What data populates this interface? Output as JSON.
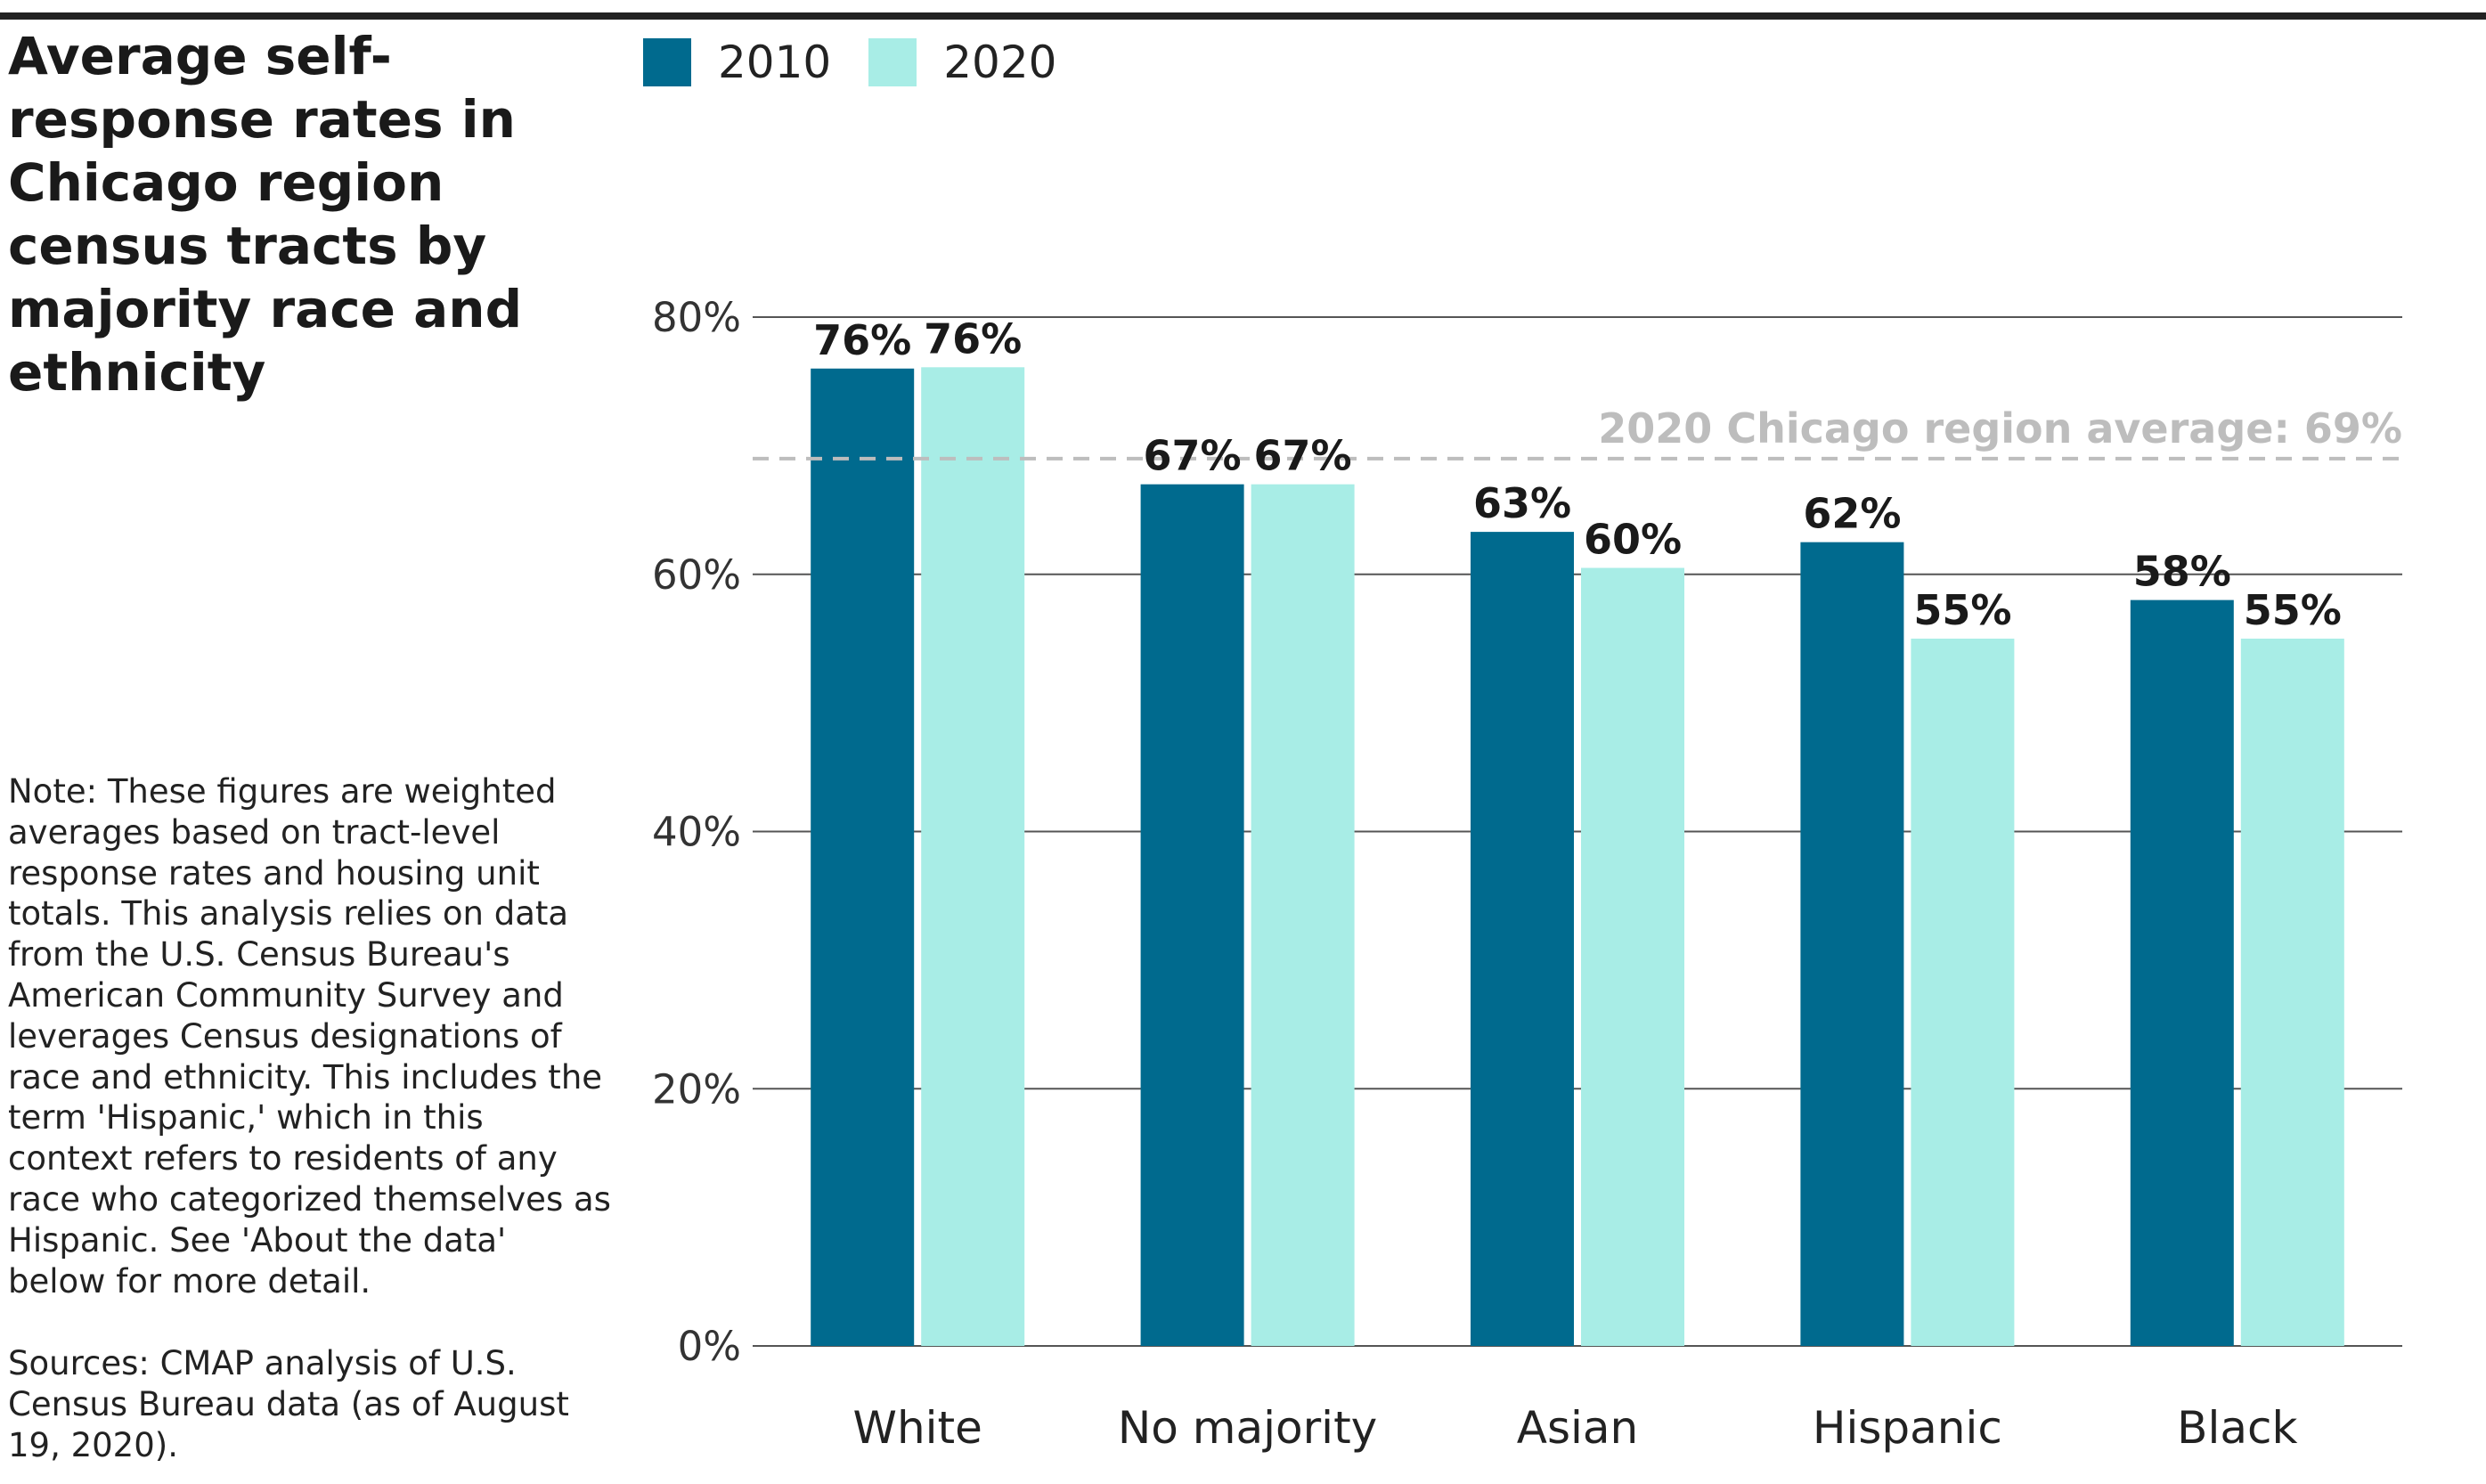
{
  "title": "Average self-response rates in Chicago region census tracts by majority race and ethnicity",
  "note": "Note: These figures are weighted averages based on tract-level response rates and housing unit totals. This analysis relies on data from the U.S. Census Bureau's American Community Survey and leverages Census designations of race and ethnicity. This includes the term 'Hispanic,' which in this context refers to residents of any race who categorized themselves as Hispanic. See 'About the data' below for more detail.",
  "sources": "Sources: CMAP analysis of U.S. Census Bureau data (as of August 19, 2020).",
  "colors": {
    "series_2010": "#006a8e",
    "series_2020": "#a8ede6",
    "gridline": "#555555",
    "reference_line": "#bdbdbd"
  },
  "chart_data": {
    "type": "bar",
    "title": "Average self-response rates in Chicago region census tracts by majority race and ethnicity",
    "xlabel": "",
    "ylabel": "",
    "categories": [
      "White",
      "No majority",
      "Asian",
      "Hispanic",
      "Black"
    ],
    "series": [
      {
        "name": "2010",
        "values": [
          76,
          67,
          63.3,
          62.5,
          58
        ],
        "labels": [
          "76%",
          "67%",
          "63%",
          "62%",
          "58%"
        ]
      },
      {
        "name": "2020",
        "values": [
          76.1,
          67,
          60.5,
          55,
          55
        ],
        "labels": [
          "76%",
          "67%",
          "60%",
          "55%",
          "55%"
        ]
      }
    ],
    "ylim": [
      0,
      80
    ],
    "yticks": [
      0,
      20,
      40,
      60,
      80
    ],
    "ytick_labels": [
      "0%",
      "20%",
      "40%",
      "60%",
      "80%"
    ],
    "grid": true,
    "legend": "top-left",
    "reference_line": {
      "value": 69,
      "label": "2020 Chicago region average: 69%",
      "style": "dashed"
    }
  }
}
